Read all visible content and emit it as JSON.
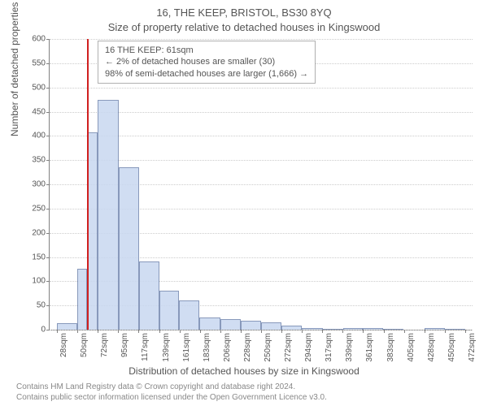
{
  "title_line1": "16, THE KEEP, BRISTOL, BS30 8YQ",
  "title_line2": "Size of property relative to detached houses in Kingswood",
  "legend": {
    "line1": "16 THE KEEP: 61sqm",
    "line2": "← 2% of detached houses are smaller (30)",
    "line3": "98% of semi-detached houses are larger (1,666) →"
  },
  "chart": {
    "type": "histogram",
    "ylabel": "Number of detached properties",
    "xlabel": "Distribution of detached houses by size in Kingswood",
    "ylim": [
      0,
      600
    ],
    "ytick_step": 50,
    "xlim": [
      20,
      480
    ],
    "xtick_start": 28,
    "xtick_spacing": 22.2,
    "xtick_count": 21,
    "xtick_unit": "sqm",
    "bar_color": "rgba(200,215,240,0.85)",
    "bar_border_color": "#8899bb",
    "grid_color": "#cccccc",
    "marker_x": 61,
    "marker_color": "#d02020",
    "background_color": "#ffffff",
    "title_fontsize": 13,
    "label_fontsize": 12,
    "tick_fontsize": 10,
    "bars": [
      {
        "x0": 28,
        "x1": 50,
        "y": 13
      },
      {
        "x0": 50,
        "x1": 61,
        "y": 125
      },
      {
        "x0": 61,
        "x1": 72,
        "y": 408
      },
      {
        "x0": 72,
        "x1": 95,
        "y": 475
      },
      {
        "x0": 95,
        "x1": 117,
        "y": 335
      },
      {
        "x0": 117,
        "x1": 139,
        "y": 140
      },
      {
        "x0": 139,
        "x1": 161,
        "y": 80
      },
      {
        "x0": 161,
        "x1": 183,
        "y": 60
      },
      {
        "x0": 183,
        "x1": 206,
        "y": 25
      },
      {
        "x0": 206,
        "x1": 228,
        "y": 22
      },
      {
        "x0": 228,
        "x1": 250,
        "y": 18
      },
      {
        "x0": 250,
        "x1": 272,
        "y": 15
      },
      {
        "x0": 272,
        "x1": 294,
        "y": 8
      },
      {
        "x0": 294,
        "x1": 317,
        "y": 4
      },
      {
        "x0": 317,
        "x1": 339,
        "y": 2
      },
      {
        "x0": 339,
        "x1": 361,
        "y": 4
      },
      {
        "x0": 361,
        "x1": 383,
        "y": 3
      },
      {
        "x0": 383,
        "x1": 405,
        "y": 1
      },
      {
        "x0": 405,
        "x1": 428,
        "y": 0
      },
      {
        "x0": 428,
        "x1": 450,
        "y": 3
      },
      {
        "x0": 450,
        "x1": 472,
        "y": 2
      }
    ]
  },
  "footer": {
    "line1": "Contains HM Land Registry data © Crown copyright and database right 2024.",
    "line2": "Contains public sector information licensed under the Open Government Licence v3.0."
  }
}
